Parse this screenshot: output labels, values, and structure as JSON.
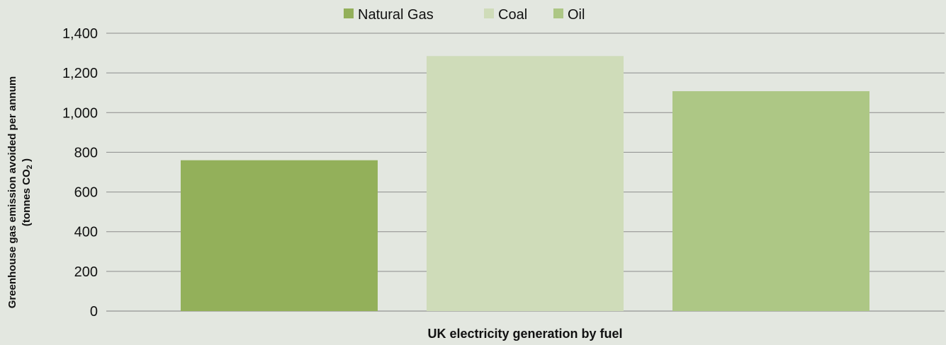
{
  "chart_data": {
    "type": "bar",
    "title": "",
    "xlabel": "UK electricity generation by fuel",
    "ylabel_line1": "Greenhouse gas emission avoided per annum",
    "ylabel_line2_prefix": "(tonnes  CO",
    "ylabel_line2_sub": "2",
    "ylabel_line2_suffix": " )",
    "ylim": [
      0,
      1400
    ],
    "yticks": [
      "0",
      "200",
      "400",
      "600",
      "800",
      "1,000",
      "1,200",
      "1,400"
    ],
    "grid": true,
    "legend_position": "top-center",
    "series": [
      {
        "name": "Natural Gas",
        "value": 760,
        "color": "#93b05a"
      },
      {
        "name": "Coal",
        "value": 1285,
        "color": "#cfdcb9"
      },
      {
        "name": "Oil",
        "value": 1108,
        "color": "#adc785"
      }
    ]
  }
}
